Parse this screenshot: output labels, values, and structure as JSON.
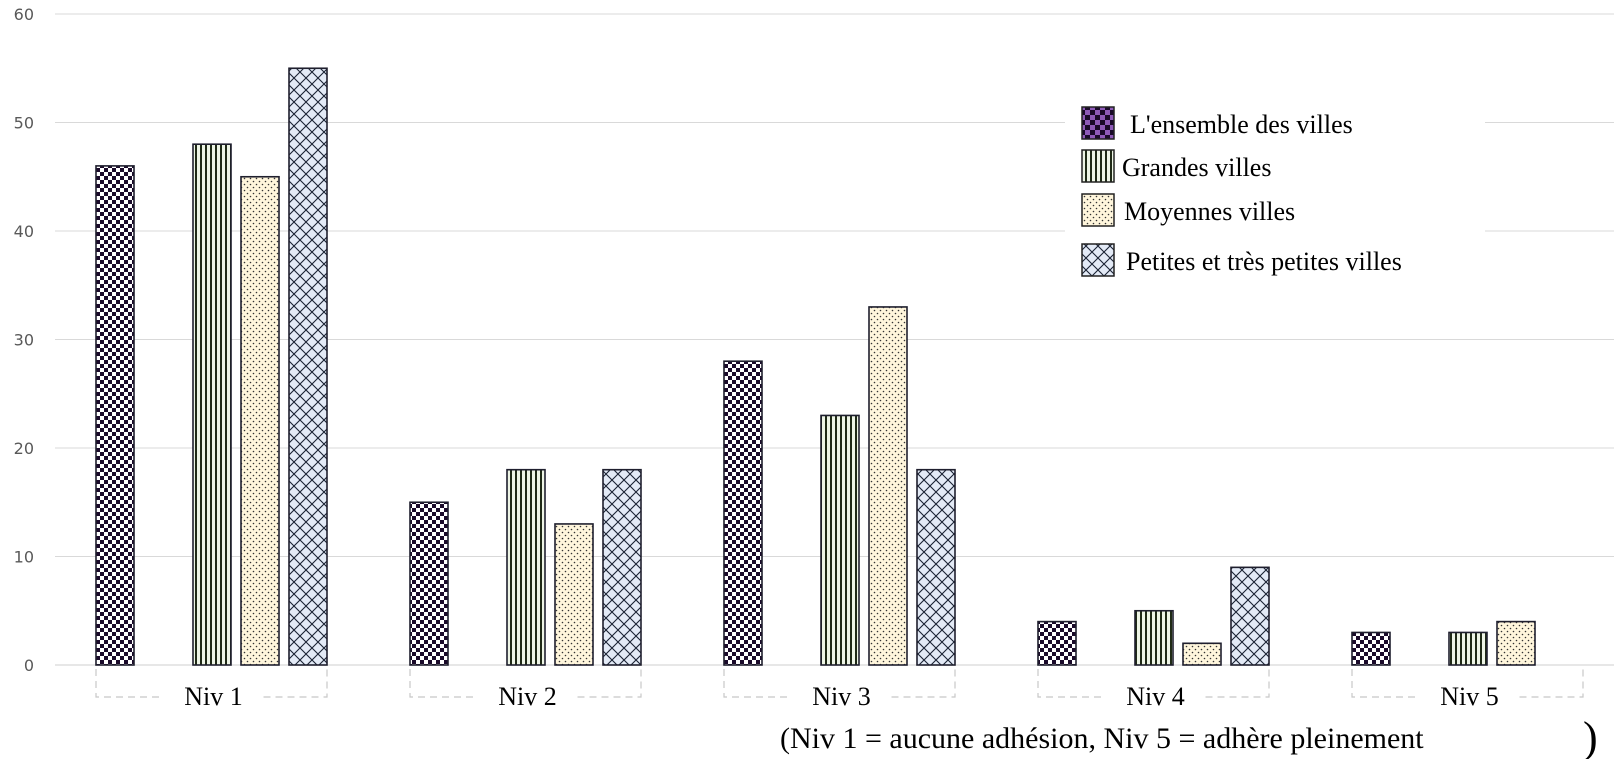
{
  "chart_data": {
    "type": "bar",
    "categories": [
      "Niv 1",
      "Niv 2",
      "Niv 3",
      "Niv 4",
      "Niv 5"
    ],
    "series": [
      {
        "name": "L'ensemble des villes",
        "values": [
          46,
          15,
          28,
          4,
          3
        ],
        "color": "#7030a0",
        "pattern": "checker"
      },
      {
        "name": "Grandes villes",
        "values": [
          48,
          18,
          23,
          5,
          3
        ],
        "color": "#e2efda",
        "pattern": "vertical-lines"
      },
      {
        "name": "Moyennes villes",
        "values": [
          45,
          13,
          33,
          2,
          4
        ],
        "color": "#fff2cc",
        "pattern": "dots"
      },
      {
        "name": "Petites et très petites villes",
        "values": [
          55,
          18,
          18,
          9,
          null
        ],
        "color": "#dae3f3",
        "pattern": "crosshatch"
      }
    ],
    "yticks": [
      0,
      10,
      20,
      30,
      40,
      50,
      60
    ],
    "ylim": [
      0,
      60
    ],
    "grid": true,
    "legend": "top-right",
    "note": "(Niv 1 = aucune adhésion, Niv 5 = adhère pleinement",
    "note_close": ")"
  }
}
